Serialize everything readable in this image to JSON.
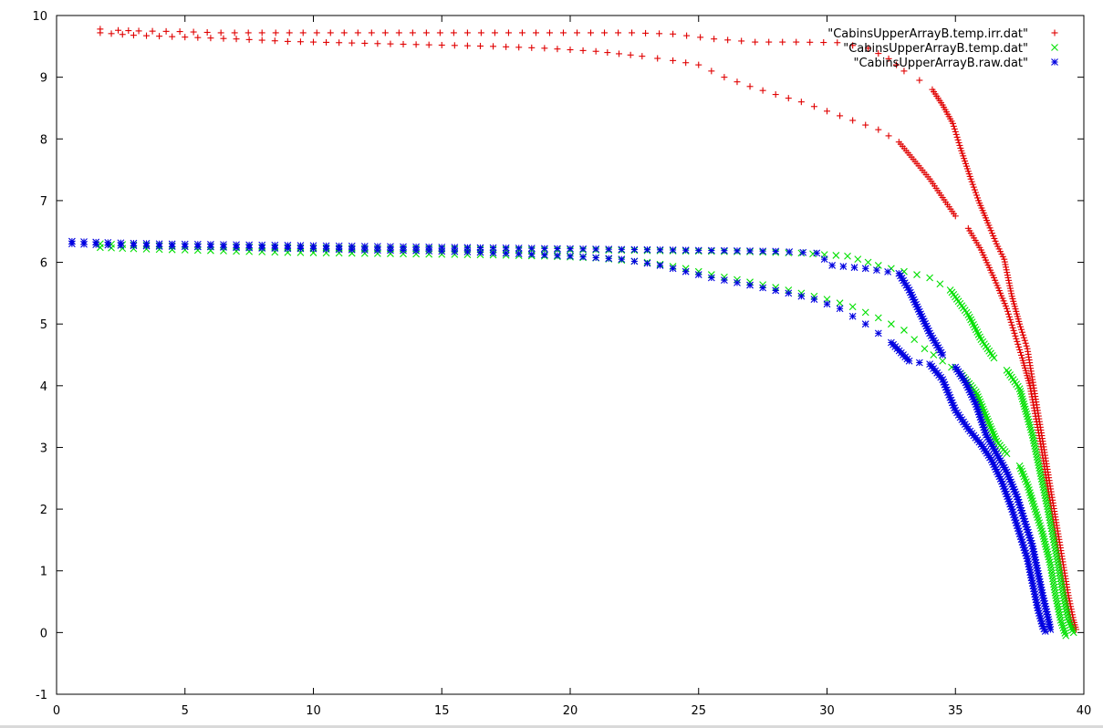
{
  "chart_data": {
    "type": "scatter",
    "title": "",
    "xlabel": "",
    "ylabel": "",
    "xlim": [
      0,
      40
    ],
    "ylim": [
      -1,
      10
    ],
    "x_ticks": [
      0,
      5,
      10,
      15,
      20,
      25,
      30,
      35,
      40
    ],
    "y_ticks": [
      -1,
      0,
      1,
      2,
      3,
      4,
      5,
      6,
      7,
      8,
      9,
      10
    ],
    "x_tick_labels": [
      "0",
      "5",
      "10",
      "15",
      "20",
      "25",
      "30",
      "35",
      "40"
    ],
    "y_tick_labels": [
      "-1",
      "0",
      "1",
      "2",
      "3",
      "4",
      "5",
      "6",
      "7",
      "8",
      "9",
      "10"
    ],
    "grid": false,
    "legend_position": "top-right",
    "series": [
      {
        "name": "\"CabinsUpperArrayB.temp.irr.dat\"",
        "marker": "plus",
        "color": "#e00000",
        "curves": [
          [
            [
              1.7,
              9.78
            ],
            [
              2.4,
              9.76
            ],
            [
              3.2,
              9.75
            ],
            [
              4.8,
              9.74
            ],
            [
              6.4,
              9.72
            ],
            [
              8.0,
              9.72
            ],
            [
              9.6,
              9.72
            ],
            [
              11.2,
              9.72
            ],
            [
              12.8,
              9.72
            ],
            [
              14.4,
              9.72
            ],
            [
              16.0,
              9.72
            ],
            [
              17.6,
              9.72
            ],
            [
              19.2,
              9.72
            ],
            [
              20.8,
              9.72
            ],
            [
              22.4,
              9.72
            ],
            [
              24.0,
              9.7
            ],
            [
              25.6,
              9.62
            ],
            [
              27.2,
              9.57
            ],
            [
              28.8,
              9.57
            ],
            [
              30.4,
              9.56
            ],
            [
              31.6,
              9.47
            ],
            [
              32.4,
              9.3
            ],
            [
              33.0,
              9.1
            ],
            [
              33.6,
              8.95
            ],
            [
              34.1,
              8.8
            ],
            [
              34.5,
              8.55
            ],
            [
              34.9,
              8.25
            ],
            [
              35.2,
              7.85
            ],
            [
              35.6,
              7.35
            ],
            [
              35.9,
              7.0
            ],
            [
              36.3,
              6.6
            ],
            [
              36.6,
              6.3
            ],
            [
              36.9,
              6.05
            ],
            [
              37.2,
              5.45
            ],
            [
              37.5,
              5.0
            ],
            [
              37.8,
              4.6
            ],
            [
              38.0,
              4.1
            ],
            [
              38.2,
              3.6
            ],
            [
              38.4,
              3.1
            ],
            [
              38.6,
              2.6
            ],
            [
              38.8,
              2.1
            ],
            [
              39.0,
              1.6
            ],
            [
              39.2,
              1.1
            ],
            [
              39.4,
              0.6
            ],
            [
              39.6,
              0.2
            ],
            [
              39.7,
              0.05
            ]
          ],
          [
            [
              1.7,
              9.72
            ],
            [
              3.0,
              9.68
            ],
            [
              5.0,
              9.65
            ],
            [
              7.0,
              9.62
            ],
            [
              9.0,
              9.58
            ],
            [
              11.0,
              9.56
            ],
            [
              13.0,
              9.54
            ],
            [
              15.0,
              9.52
            ],
            [
              17.0,
              9.5
            ],
            [
              19.0,
              9.47
            ],
            [
              21.0,
              9.42
            ],
            [
              22.8,
              9.34
            ],
            [
              24.0,
              9.27
            ],
            [
              25.0,
              9.2
            ],
            [
              26.0,
              9.0
            ],
            [
              27.0,
              8.85
            ],
            [
              28.0,
              8.72
            ],
            [
              29.0,
              8.6
            ],
            [
              30.0,
              8.45
            ],
            [
              31.0,
              8.3
            ],
            [
              32.0,
              8.15
            ],
            [
              32.8,
              7.95
            ],
            [
              33.5,
              7.6
            ],
            [
              34.0,
              7.35
            ],
            [
              34.5,
              7.05
            ],
            [
              35.0,
              6.75
            ],
            [
              35.5,
              6.55
            ],
            [
              36.0,
              6.2
            ],
            [
              36.5,
              5.75
            ],
            [
              37.0,
              5.25
            ],
            [
              37.3,
              4.85
            ],
            [
              37.6,
              4.45
            ],
            [
              37.9,
              4.0
            ],
            [
              38.1,
              3.55
            ],
            [
              38.3,
              3.1
            ],
            [
              38.5,
              2.6
            ],
            [
              38.7,
              2.1
            ],
            [
              38.9,
              1.6
            ],
            [
              39.1,
              1.1
            ],
            [
              39.3,
              0.6
            ],
            [
              39.5,
              0.2
            ],
            [
              39.6,
              0.05
            ]
          ]
        ]
      },
      {
        "name": "\"CabinsUpperArrayB.temp.dat\"",
        "marker": "cross",
        "color": "#00e000",
        "curves": [
          [
            [
              1.7,
              6.3
            ],
            [
              3.0,
              6.28
            ],
            [
              5.0,
              6.26
            ],
            [
              7.0,
              6.25
            ],
            [
              9.0,
              6.24
            ],
            [
              11.0,
              6.23
            ],
            [
              13.0,
              6.22
            ],
            [
              15.0,
              6.22
            ],
            [
              17.0,
              6.21
            ],
            [
              19.0,
              6.2
            ],
            [
              21.0,
              6.2
            ],
            [
              23.0,
              6.19
            ],
            [
              25.0,
              6.18
            ],
            [
              27.0,
              6.17
            ],
            [
              29.0,
              6.15
            ],
            [
              30.8,
              6.1
            ],
            [
              32.0,
              5.95
            ],
            [
              33.0,
              5.85
            ],
            [
              34.0,
              5.75
            ],
            [
              34.8,
              5.55
            ],
            [
              35.5,
              5.15
            ],
            [
              36.0,
              4.75
            ],
            [
              36.5,
              4.45
            ],
            [
              37.0,
              4.25
            ],
            [
              37.5,
              3.95
            ],
            [
              37.8,
              3.5
            ],
            [
              38.0,
              3.2
            ],
            [
              38.2,
              2.8
            ],
            [
              38.4,
              2.4
            ],
            [
              38.6,
              2.0
            ],
            [
              38.8,
              1.55
            ],
            [
              39.0,
              1.1
            ],
            [
              39.2,
              0.6
            ],
            [
              39.4,
              0.2
            ],
            [
              39.6,
              0.0
            ]
          ],
          [
            [
              1.7,
              6.24
            ],
            [
              3.0,
              6.22
            ],
            [
              5.0,
              6.2
            ],
            [
              7.0,
              6.18
            ],
            [
              9.0,
              6.16
            ],
            [
              11.0,
              6.15
            ],
            [
              13.0,
              6.14
            ],
            [
              15.0,
              6.13
            ],
            [
              17.0,
              6.12
            ],
            [
              19.0,
              6.1
            ],
            [
              21.0,
              6.07
            ],
            [
              23.0,
              6.0
            ],
            [
              24.5,
              5.9
            ],
            [
              25.5,
              5.8
            ],
            [
              27.0,
              5.68
            ],
            [
              28.5,
              5.55
            ],
            [
              30.0,
              5.4
            ],
            [
              31.0,
              5.28
            ],
            [
              32.0,
              5.1
            ],
            [
              33.0,
              4.9
            ],
            [
              33.8,
              4.6
            ],
            [
              34.5,
              4.4
            ],
            [
              35.2,
              4.2
            ],
            [
              35.8,
              3.9
            ],
            [
              36.2,
              3.5
            ],
            [
              36.6,
              3.1
            ],
            [
              37.0,
              2.9
            ],
            [
              37.5,
              2.7
            ],
            [
              37.8,
              2.4
            ],
            [
              38.1,
              2.0
            ],
            [
              38.4,
              1.6
            ],
            [
              38.7,
              1.1
            ],
            [
              38.9,
              0.6
            ],
            [
              39.1,
              0.2
            ],
            [
              39.3,
              -0.05
            ]
          ]
        ]
      },
      {
        "name": "\"CabinsUpperArrayB.raw.dat\"",
        "marker": "star",
        "color": "#0000e0",
        "curves": [
          [
            [
              0.6,
              6.34
            ],
            [
              2.0,
              6.32
            ],
            [
              4.0,
              6.3
            ],
            [
              6.0,
              6.29
            ],
            [
              8.0,
              6.28
            ],
            [
              10.0,
              6.27
            ],
            [
              12.0,
              6.26
            ],
            [
              14.0,
              6.25
            ],
            [
              16.0,
              6.24
            ],
            [
              18.0,
              6.23
            ],
            [
              20.0,
              6.22
            ],
            [
              22.0,
              6.21
            ],
            [
              24.0,
              6.2
            ],
            [
              26.0,
              6.19
            ],
            [
              28.0,
              6.18
            ],
            [
              29.6,
              6.15
            ],
            [
              30.2,
              5.95
            ],
            [
              31.5,
              5.9
            ],
            [
              32.8,
              5.82
            ],
            [
              33.2,
              5.55
            ],
            [
              33.6,
              5.2
            ],
            [
              34.0,
              4.85
            ],
            [
              34.5,
              4.5
            ],
            [
              35.0,
              4.3
            ],
            [
              35.4,
              4.05
            ],
            [
              35.8,
              3.7
            ],
            [
              36.2,
              3.2
            ],
            [
              36.6,
              2.9
            ],
            [
              37.0,
              2.6
            ],
            [
              37.4,
              2.2
            ],
            [
              37.7,
              1.8
            ],
            [
              38.0,
              1.4
            ],
            [
              38.2,
              1.0
            ],
            [
              38.4,
              0.6
            ],
            [
              38.6,
              0.25
            ],
            [
              38.7,
              0.05
            ]
          ],
          [
            [
              0.6,
              6.3
            ],
            [
              2.0,
              6.28
            ],
            [
              4.0,
              6.26
            ],
            [
              6.0,
              6.25
            ],
            [
              8.0,
              6.23
            ],
            [
              10.0,
              6.22
            ],
            [
              12.0,
              6.2
            ],
            [
              14.0,
              6.19
            ],
            [
              16.0,
              6.17
            ],
            [
              18.0,
              6.14
            ],
            [
              20.0,
              6.1
            ],
            [
              22.0,
              6.05
            ],
            [
              23.5,
              5.95
            ],
            [
              24.5,
              5.85
            ],
            [
              25.5,
              5.75
            ],
            [
              27.0,
              5.63
            ],
            [
              28.5,
              5.5
            ],
            [
              29.5,
              5.4
            ],
            [
              30.5,
              5.25
            ],
            [
              31.5,
              5.0
            ],
            [
              32.5,
              4.7
            ],
            [
              33.2,
              4.4
            ],
            [
              34.0,
              4.35
            ],
            [
              34.5,
              4.1
            ],
            [
              35.0,
              3.6
            ],
            [
              35.5,
              3.3
            ],
            [
              36.0,
              3.05
            ],
            [
              36.4,
              2.8
            ],
            [
              36.8,
              2.45
            ],
            [
              37.2,
              2.0
            ],
            [
              37.5,
              1.6
            ],
            [
              37.8,
              1.2
            ],
            [
              38.0,
              0.8
            ],
            [
              38.2,
              0.4
            ],
            [
              38.4,
              0.1
            ],
            [
              38.5,
              0.02
            ]
          ]
        ]
      }
    ]
  }
}
